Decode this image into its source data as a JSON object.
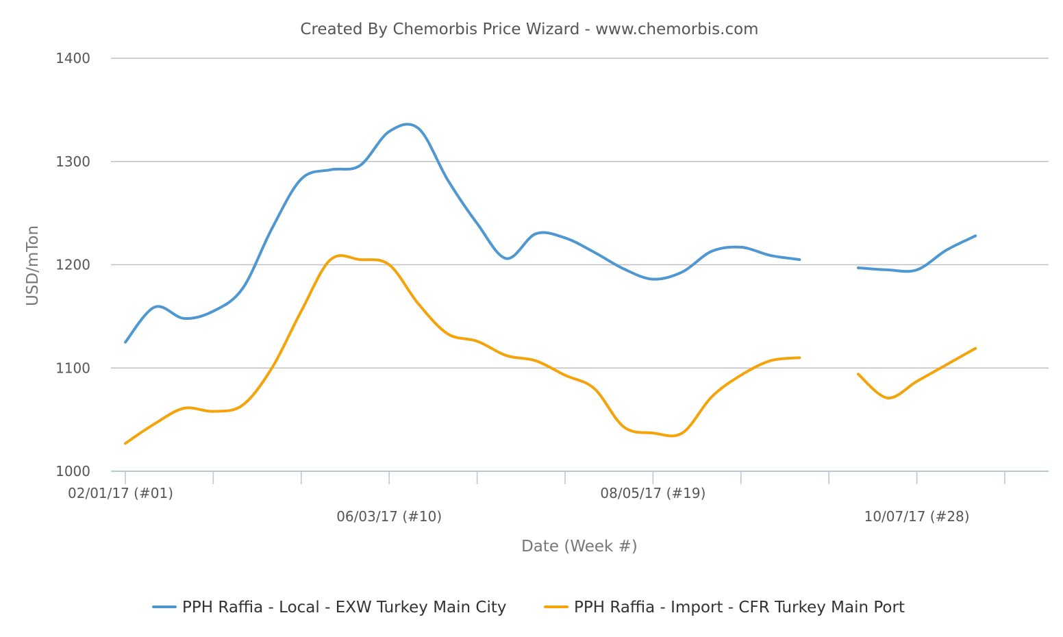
{
  "chart_data": {
    "type": "line",
    "title": "Created By Chemorbis Price Wizard - www.chemorbis.com",
    "xlabel": "Date (Week #)",
    "ylabel": "USD/mTon",
    "ylim": [
      1000,
      1400
    ],
    "yticks": [
      1000,
      1100,
      1200,
      1300,
      1400
    ],
    "grid": true,
    "legend_position": "bottom-center",
    "x_labels": [
      {
        "week": 1,
        "label": "02/01/17 (#01)",
        "row": 1
      },
      {
        "week": 10,
        "label": "06/03/17 (#10)",
        "row": 2
      },
      {
        "week": 19,
        "label": "08/05/17 (#19)",
        "row": 1
      },
      {
        "week": 28,
        "label": "10/07/17 (#28)",
        "row": 2
      }
    ],
    "x_tick_weeks": [
      1,
      4,
      7,
      10,
      13,
      16,
      19,
      22,
      25,
      28,
      31
    ],
    "x": [
      1,
      2,
      3,
      4,
      5,
      6,
      7,
      8,
      9,
      10,
      11,
      12,
      13,
      14,
      15,
      16,
      17,
      18,
      19,
      20,
      21,
      22,
      23,
      24,
      25,
      26,
      27,
      28,
      29,
      30,
      31
    ],
    "series": [
      {
        "name": "PPH Raffia - Local - EXW Turkey Main City",
        "color": "#4e97d0",
        "values": [
          1125,
          1159,
          1148,
          1155,
          1177,
          1235,
          1283,
          1292,
          1296,
          1329,
          1332,
          1282,
          1240,
          1206,
          1230,
          1226,
          1212,
          1196,
          1186,
          1193,
          1213,
          1217,
          1209,
          1205,
          null,
          1197,
          1195,
          1195,
          1214,
          1228,
          null
        ]
      },
      {
        "name": "PPH Raffia - Import - CFR Turkey Main Port",
        "color": "#f5a30b",
        "values": [
          1027,
          1046,
          1061,
          1058,
          1064,
          1100,
          1155,
          1205,
          1205,
          1200,
          1162,
          1133,
          1126,
          1112,
          1107,
          1093,
          1080,
          1043,
          1037,
          1037,
          1072,
          1093,
          1107,
          1110,
          null,
          1094,
          1071,
          1087,
          1103,
          1119,
          null
        ]
      }
    ]
  }
}
